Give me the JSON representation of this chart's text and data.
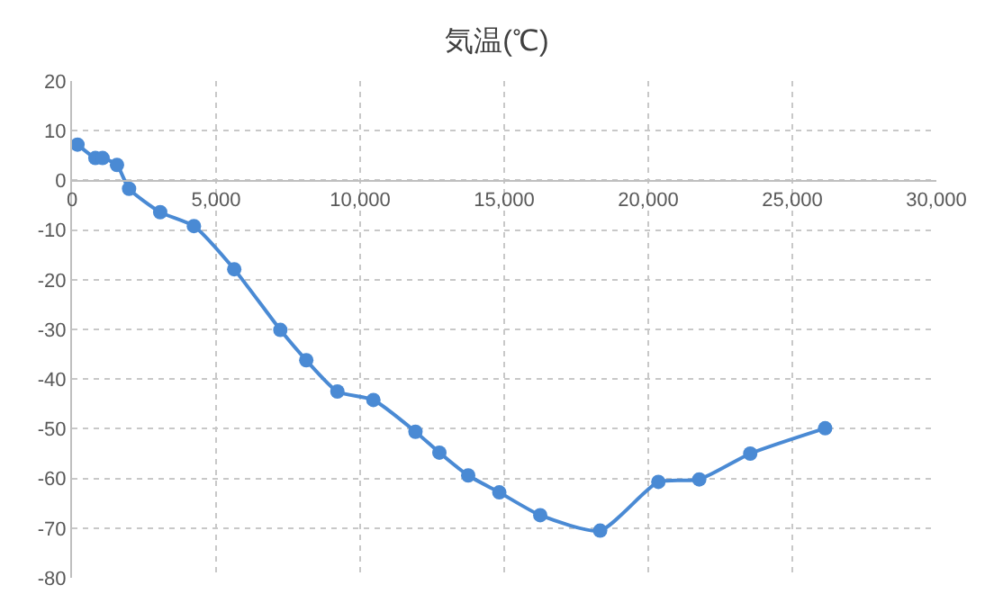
{
  "chart_data": {
    "type": "line",
    "title": "気温(℃)",
    "x": [
      190,
      810,
      1060,
      1560,
      1980,
      3060,
      4230,
      5630,
      7230,
      8130,
      9210,
      10460,
      11920,
      12750,
      13750,
      14830,
      16250,
      18330,
      20350,
      21770,
      23540,
      26140
    ],
    "series": [
      {
        "color": "#4a8ad4",
        "values": [
          7.2,
          4.5,
          4.5,
          3.1,
          -1.7,
          -6.4,
          -9.2,
          -17.9,
          -30.1,
          -36.2,
          -42.5,
          -44.2,
          -50.6,
          -54.8,
          -59.4,
          -62.8,
          -67.4,
          -70.5,
          -60.7,
          -60.2,
          -55.0,
          -49.9
        ]
      }
    ],
    "xlim": [
      0,
      30000
    ],
    "xticks": [
      {
        "value": 0,
        "label": "0"
      },
      {
        "value": 5000,
        "label": "5,000"
      },
      {
        "value": 10000,
        "label": "10,000"
      },
      {
        "value": 15000,
        "label": "15,000"
      },
      {
        "value": 20000,
        "label": "20,000"
      },
      {
        "value": 25000,
        "label": "25,000"
      },
      {
        "value": 30000,
        "label": "30,000"
      }
    ],
    "ylim": [
      -80,
      20
    ],
    "yticks": [
      -80,
      -70,
      -60,
      -50,
      -40,
      -30,
      -20,
      -10,
      0,
      10,
      20
    ],
    "grid": true,
    "marker": "circle",
    "line_style": "solid"
  }
}
